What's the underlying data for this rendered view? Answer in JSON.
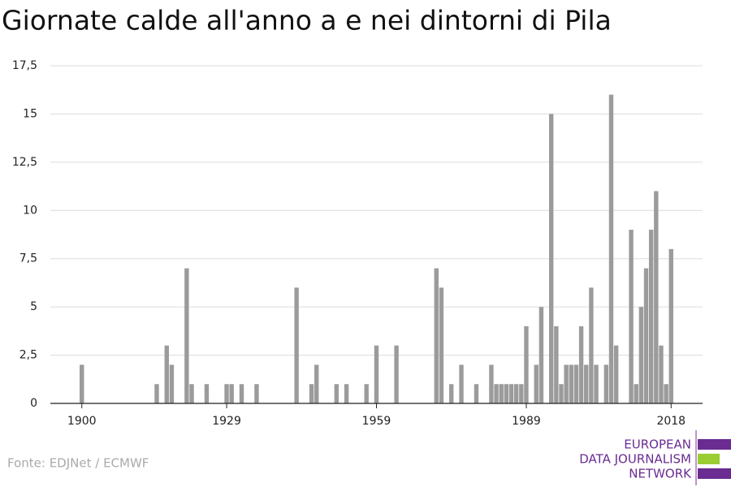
{
  "chart_data": {
    "type": "bar",
    "title": "Giornate calde all'anno a e nei dintorni di Pila",
    "source": "Fonte: EDJNet / ECMWF",
    "logo": [
      "EUROPEAN",
      "DATA JOURNALISM",
      "NETWORK"
    ],
    "color": "#9b9b9b",
    "grid": true,
    "x": [
      1900,
      1915,
      1917,
      1918,
      1921,
      1922,
      1925,
      1929,
      1930,
      1932,
      1935,
      1943,
      1946,
      1947,
      1951,
      1953,
      1957,
      1959,
      1963,
      1971,
      1972,
      1974,
      1976,
      1979,
      1982,
      1983,
      1984,
      1985,
      1986,
      1987,
      1988,
      1989,
      1991,
      1992,
      1994,
      1995,
      1996,
      1997,
      1998,
      1999,
      2000,
      2001,
      2002,
      2003,
      2005,
      2006,
      2007,
      2010,
      2011,
      2012,
      2013,
      2014,
      2015,
      2016,
      2017,
      2018
    ],
    "values": [
      2,
      1,
      3,
      2,
      7,
      1,
      1,
      1,
      1,
      1,
      1,
      6,
      1,
      2,
      1,
      1,
      1,
      3,
      3,
      7,
      6,
      1,
      2,
      1,
      2,
      1,
      1,
      1,
      1,
      1,
      1,
      4,
      2,
      5,
      15,
      4,
      1,
      2,
      2,
      2,
      4,
      2,
      6,
      2,
      2,
      16,
      3,
      9,
      1,
      5,
      7,
      9,
      11,
      3,
      1,
      8
    ],
    "xlim": [
      1893.7,
      2024.3
    ],
    "xticks": [
      1900,
      1929,
      1959,
      1989,
      2018
    ],
    "ylim": [
      0,
      17.5
    ],
    "yticks": [
      0,
      {
        "value": 2.5,
        "label": "2,5"
      },
      5,
      {
        "value": 7.5,
        "label": "7,5"
      },
      10,
      {
        "value": 12.5,
        "label": "12,5"
      },
      15,
      {
        "value": 17.5,
        "label": "17,5"
      }
    ]
  }
}
